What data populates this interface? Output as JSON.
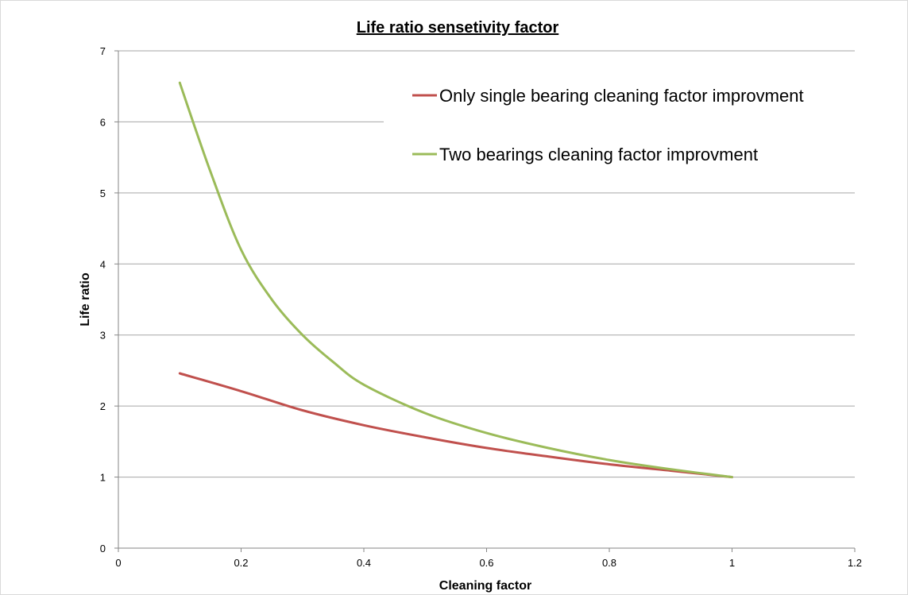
{
  "chart_data": {
    "type": "line",
    "title": "Life ratio sensetivity factor",
    "xlabel": "Cleaning  factor",
    "ylabel": "Life ratio",
    "xlim": [
      0,
      1.2
    ],
    "ylim": [
      0,
      7
    ],
    "x_ticks": [
      "0",
      "0.2",
      "0.4",
      "0.6",
      "0.8",
      "1",
      "1.2"
    ],
    "y_ticks": [
      "0",
      "1",
      "2",
      "3",
      "4",
      "5",
      "6",
      "7"
    ],
    "grid": true,
    "legend_position": "top-right",
    "series": [
      {
        "name": "Only single bearing cleaning factor improvment",
        "color": "#c0504d",
        "x": [
          0.1,
          0.2,
          0.3,
          0.4,
          0.5,
          0.6,
          0.7,
          0.8,
          0.9,
          1.0
        ],
        "y": [
          2.46,
          2.21,
          1.94,
          1.73,
          1.56,
          1.41,
          1.29,
          1.18,
          1.09,
          1.0
        ]
      },
      {
        "name": "Two bearings cleaning factor improvment",
        "color": "#9bbb59",
        "x": [
          0.1,
          0.15,
          0.2,
          0.25,
          0.3,
          0.35,
          0.4,
          0.5,
          0.6,
          0.7,
          0.8,
          0.9,
          1.0
        ],
        "y": [
          6.55,
          5.3,
          4.2,
          3.5,
          3.0,
          2.62,
          2.3,
          1.9,
          1.62,
          1.41,
          1.24,
          1.11,
          1.0
        ]
      }
    ]
  }
}
